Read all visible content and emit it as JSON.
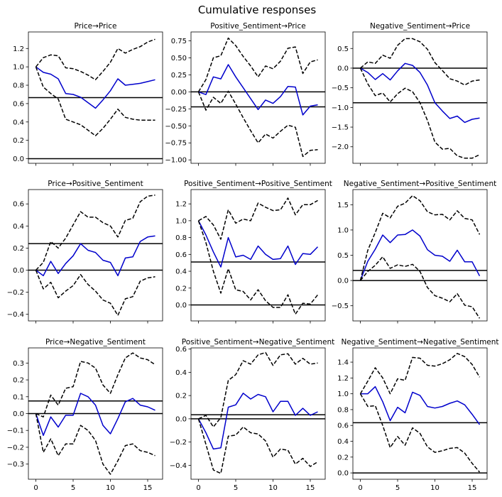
{
  "figure_title": "Cumulative responses",
  "colors": {
    "irf": "#0000cc",
    "band": "#000000",
    "ref": "#000000"
  },
  "chart_data": [
    {
      "type": "line",
      "title": "Price→Price",
      "x": [
        0,
        1,
        2,
        3,
        4,
        5,
        6,
        7,
        8,
        9,
        10,
        11,
        12,
        13,
        14,
        15,
        16
      ],
      "xticks": [
        "0",
        "5",
        "10",
        "15"
      ],
      "xlim": [
        -1,
        17
      ],
      "ylim": [
        -0.05,
        1.38
      ],
      "yticks": [
        "0.0",
        "0.2",
        "0.4",
        "0.6",
        "0.8",
        "1.0",
        "1.2"
      ],
      "hlines": [
        0.0,
        0.665
      ],
      "series": [
        {
          "values": [
            1.0,
            0.94,
            0.92,
            0.87,
            0.71,
            0.7,
            0.67,
            0.61,
            0.55,
            0.64,
            0.74,
            0.87,
            0.8,
            0.81,
            0.82,
            0.84,
            0.86
          ],
          "style": "solid"
        },
        {
          "values": [
            1.0,
            1.1,
            1.13,
            1.12,
            0.99,
            0.98,
            0.95,
            0.91,
            0.86,
            0.95,
            1.05,
            1.2,
            1.15,
            1.19,
            1.22,
            1.27,
            1.3
          ],
          "style": "dashed"
        },
        {
          "values": [
            1.0,
            0.78,
            0.71,
            0.65,
            0.43,
            0.4,
            0.37,
            0.31,
            0.25,
            0.33,
            0.43,
            0.54,
            0.45,
            0.43,
            0.42,
            0.42,
            0.42
          ],
          "style": "dashed"
        }
      ]
    },
    {
      "type": "line",
      "title": "Positive_Sentiment→Price",
      "x": [
        0,
        1,
        2,
        3,
        4,
        5,
        6,
        7,
        8,
        9,
        10,
        11,
        12,
        13,
        14,
        15,
        16
      ],
      "xticks": [
        "0",
        "5",
        "10",
        "15"
      ],
      "xlim": [
        -1,
        17
      ],
      "ylim": [
        -1.05,
        0.88
      ],
      "yticks": [
        "−1.00",
        "−0.75",
        "−0.50",
        "−0.25",
        "0.00",
        "0.25",
        "0.50",
        "0.75"
      ],
      "hlines": [
        0.0,
        -0.22
      ],
      "series": [
        {
          "values": [
            0.0,
            -0.04,
            0.22,
            0.19,
            0.4,
            0.22,
            0.06,
            -0.1,
            -0.26,
            -0.12,
            -0.17,
            -0.07,
            0.08,
            0.07,
            -0.34,
            -0.21,
            -0.19
          ],
          "style": "solid"
        },
        {
          "values": [
            0.0,
            0.18,
            0.5,
            0.53,
            0.79,
            0.68,
            0.52,
            0.38,
            0.22,
            0.38,
            0.34,
            0.45,
            0.64,
            0.66,
            0.27,
            0.44,
            0.47
          ],
          "style": "dashed"
        },
        {
          "values": [
            0.0,
            -0.27,
            -0.08,
            -0.17,
            0.01,
            -0.18,
            -0.38,
            -0.57,
            -0.75,
            -0.62,
            -0.68,
            -0.58,
            -0.49,
            -0.52,
            -0.95,
            -0.86,
            -0.85
          ],
          "style": "dashed"
        }
      ]
    },
    {
      "type": "line",
      "title": "Negative_Sentiment→Price",
      "x": [
        0,
        1,
        2,
        3,
        4,
        5,
        6,
        7,
        8,
        9,
        10,
        11,
        12,
        13,
        14,
        15,
        16
      ],
      "xticks": [
        "0",
        "5",
        "10",
        "15"
      ],
      "xlim": [
        -1,
        17
      ],
      "ylim": [
        -2.42,
        0.92
      ],
      "yticks": [
        "−2.0",
        "−1.5",
        "−1.0",
        "−0.5",
        "0.0",
        "0.5"
      ],
      "hlines": [
        0.0,
        -0.88
      ],
      "series": [
        {
          "values": [
            0.0,
            -0.11,
            -0.29,
            -0.14,
            -0.3,
            -0.07,
            0.12,
            0.07,
            -0.11,
            -0.43,
            -0.88,
            -1.09,
            -1.28,
            -1.22,
            -1.38,
            -1.3,
            -1.27
          ],
          "style": "solid"
        },
        {
          "values": [
            0.0,
            0.16,
            0.12,
            0.33,
            0.25,
            0.58,
            0.75,
            0.75,
            0.67,
            0.48,
            0.14,
            -0.06,
            -0.27,
            -0.33,
            -0.43,
            -0.33,
            -0.3
          ],
          "style": "dashed"
        },
        {
          "values": [
            0.0,
            -0.4,
            -0.7,
            -0.63,
            -0.86,
            -0.65,
            -0.51,
            -0.6,
            -0.88,
            -1.33,
            -1.88,
            -2.06,
            -2.04,
            -2.23,
            -2.29,
            -2.29,
            -2.2
          ],
          "style": "dashed"
        }
      ]
    },
    {
      "type": "line",
      "title": "Price→Positive_Sentiment",
      "x": [
        0,
        1,
        2,
        3,
        4,
        5,
        6,
        7,
        8,
        9,
        10,
        11,
        12,
        13,
        14,
        15,
        16
      ],
      "xticks": [
        "0",
        "5",
        "10",
        "15"
      ],
      "xlim": [
        -1,
        17
      ],
      "ylim": [
        -0.46,
        0.73
      ],
      "yticks": [
        "−0.4",
        "−0.2",
        "0.0",
        "0.2",
        "0.4",
        "0.6"
      ],
      "hlines": [
        0.0,
        0.24
      ],
      "series": [
        {
          "values": [
            0.0,
            -0.05,
            0.08,
            -0.03,
            0.06,
            0.13,
            0.24,
            0.18,
            0.16,
            0.09,
            0.07,
            -0.05,
            0.11,
            0.12,
            0.26,
            0.3,
            0.31
          ],
          "style": "solid"
        },
        {
          "values": [
            0.0,
            0.07,
            0.26,
            0.2,
            0.29,
            0.41,
            0.53,
            0.48,
            0.48,
            0.43,
            0.4,
            0.3,
            0.45,
            0.47,
            0.62,
            0.67,
            0.68
          ],
          "style": "dashed"
        },
        {
          "values": [
            0.0,
            -0.17,
            -0.11,
            -0.25,
            -0.19,
            -0.14,
            -0.04,
            -0.13,
            -0.19,
            -0.27,
            -0.3,
            -0.41,
            -0.26,
            -0.24,
            -0.1,
            -0.07,
            -0.06
          ],
          "style": "dashed"
        }
      ]
    },
    {
      "type": "line",
      "title": "Positive_Sentiment→Positive_Sentiment",
      "x": [
        0,
        1,
        2,
        3,
        4,
        5,
        6,
        7,
        8,
        9,
        10,
        11,
        12,
        13,
        14,
        15,
        16
      ],
      "xticks": [
        "0",
        "5",
        "10",
        "15"
      ],
      "xlim": [
        -1,
        17
      ],
      "ylim": [
        -0.19,
        1.37
      ],
      "yticks": [
        "0.0",
        "0.2",
        "0.4",
        "0.6",
        "0.8",
        "1.0",
        "1.2"
      ],
      "hlines": [
        0.0,
        0.51
      ],
      "series": [
        {
          "values": [
            1.0,
            0.83,
            0.63,
            0.45,
            0.8,
            0.57,
            0.59,
            0.54,
            0.7,
            0.6,
            0.54,
            0.55,
            0.7,
            0.48,
            0.61,
            0.6,
            0.69
          ],
          "style": "solid"
        },
        {
          "values": [
            1.0,
            1.05,
            0.95,
            0.78,
            1.13,
            0.97,
            1.02,
            1.0,
            1.21,
            1.16,
            1.12,
            1.13,
            1.27,
            1.07,
            1.19,
            1.19,
            1.24
          ],
          "style": "dashed"
        },
        {
          "values": [
            1.0,
            0.74,
            0.4,
            0.14,
            0.43,
            0.18,
            0.16,
            0.06,
            0.18,
            0.05,
            -0.03,
            -0.03,
            0.12,
            -0.11,
            0.02,
            0.01,
            0.12
          ],
          "style": "dashed"
        }
      ]
    },
    {
      "type": "line",
      "title": "Negative_Sentiment→Positive_Sentiment",
      "x": [
        0,
        1,
        2,
        3,
        4,
        5,
        6,
        7,
        8,
        9,
        10,
        11,
        12,
        13,
        14,
        15,
        16
      ],
      "xticks": [
        "0",
        "5",
        "10",
        "15"
      ],
      "xlim": [
        -1,
        17
      ],
      "ylim": [
        -0.8,
        1.8
      ],
      "yticks": [
        "−0.5",
        "0.0",
        "0.5",
        "1.0",
        "1.5"
      ],
      "hlines": [
        0.0,
        0.2
      ],
      "series": [
        {
          "values": [
            0.0,
            0.38,
            0.62,
            0.9,
            0.75,
            0.9,
            0.91,
            1.0,
            0.88,
            0.61,
            0.5,
            0.48,
            0.38,
            0.6,
            0.37,
            0.37,
            0.09
          ],
          "style": "solid"
        },
        {
          "values": [
            0.0,
            0.6,
            0.95,
            1.33,
            1.24,
            1.47,
            1.53,
            1.68,
            1.58,
            1.36,
            1.3,
            1.31,
            1.2,
            1.38,
            1.23,
            1.2,
            0.91
          ],
          "style": "dashed"
        },
        {
          "values": [
            0.0,
            0.18,
            0.3,
            0.47,
            0.24,
            0.31,
            0.28,
            0.32,
            0.18,
            -0.14,
            -0.3,
            -0.35,
            -0.42,
            -0.26,
            -0.49,
            -0.52,
            -0.75
          ],
          "style": "dashed"
        }
      ]
    },
    {
      "type": "line",
      "title": "Price→Negative_Sentiment",
      "x": [
        0,
        1,
        2,
        3,
        4,
        5,
        6,
        7,
        8,
        9,
        10,
        11,
        12,
        13,
        14,
        15,
        16
      ],
      "xticks": [
        "0",
        "5",
        "10",
        "15"
      ],
      "xlim": [
        -1,
        17
      ],
      "ylim": [
        -0.39,
        0.39
      ],
      "yticks": [
        "−0.3",
        "−0.2",
        "−0.1",
        "0.0",
        "0.1",
        "0.2",
        "0.3"
      ],
      "hlines": [
        0.0,
        0.075
      ],
      "series": [
        {
          "values": [
            0.0,
            -0.13,
            -0.02,
            -0.08,
            -0.01,
            -0.01,
            0.12,
            0.1,
            0.05,
            -0.07,
            -0.12,
            -0.03,
            0.07,
            0.09,
            0.05,
            0.04,
            0.02
          ],
          "style": "solid"
        },
        {
          "values": [
            0.0,
            -0.02,
            0.11,
            0.05,
            0.15,
            0.16,
            0.31,
            0.3,
            0.27,
            0.17,
            0.12,
            0.23,
            0.33,
            0.36,
            0.33,
            0.32,
            0.29
          ],
          "style": "dashed"
        },
        {
          "values": [
            0.0,
            -0.23,
            -0.15,
            -0.25,
            -0.18,
            -0.18,
            -0.07,
            -0.1,
            -0.16,
            -0.3,
            -0.36,
            -0.28,
            -0.19,
            -0.18,
            -0.22,
            -0.23,
            -0.25
          ],
          "style": "dashed"
        }
      ]
    },
    {
      "type": "line",
      "title": "Positive_Sentiment→Negative_Sentiment",
      "x": [
        0,
        1,
        2,
        3,
        4,
        5,
        6,
        7,
        8,
        9,
        10,
        11,
        12,
        13,
        14,
        15,
        16
      ],
      "xticks": [
        "0",
        "5",
        "10",
        "15"
      ],
      "xlim": [
        -1,
        17
      ],
      "ylim": [
        -0.52,
        0.61
      ],
      "yticks": [
        "−0.4",
        "−0.2",
        "0.0",
        "0.2",
        "0.4",
        "0.6"
      ],
      "hlines": [
        0.0,
        0.035
      ],
      "series": [
        {
          "values": [
            0.0,
            -0.12,
            -0.26,
            -0.25,
            0.1,
            0.12,
            0.22,
            0.17,
            0.21,
            0.19,
            0.06,
            0.15,
            0.15,
            0.03,
            0.09,
            0.03,
            0.06
          ],
          "style": "solid"
        },
        {
          "values": [
            0.0,
            0.03,
            -0.07,
            0.01,
            0.33,
            0.38,
            0.5,
            0.47,
            0.55,
            0.57,
            0.46,
            0.55,
            0.56,
            0.47,
            0.52,
            0.47,
            0.48
          ],
          "style": "dashed"
        },
        {
          "values": [
            0.0,
            -0.22,
            -0.44,
            -0.47,
            -0.15,
            -0.14,
            -0.07,
            -0.12,
            -0.13,
            -0.19,
            -0.33,
            -0.26,
            -0.27,
            -0.39,
            -0.34,
            -0.41,
            -0.37
          ],
          "style": "dashed"
        }
      ]
    },
    {
      "type": "line",
      "title": "Negative_Sentiment→Negative_Sentiment",
      "x": [
        0,
        1,
        2,
        3,
        4,
        5,
        6,
        7,
        8,
        9,
        10,
        11,
        12,
        13,
        14,
        15,
        16
      ],
      "xticks": [
        "0",
        "5",
        "10",
        "15"
      ],
      "xlim": [
        -1,
        17
      ],
      "ylim": [
        -0.08,
        1.58
      ],
      "yticks": [
        "0.0",
        "0.2",
        "0.4",
        "0.6",
        "0.8",
        "1.0",
        "1.2",
        "1.4"
      ],
      "hlines": [
        0.0,
        0.635
      ],
      "series": [
        {
          "values": [
            1.0,
            1.0,
            1.09,
            0.9,
            0.66,
            0.83,
            0.76,
            1.02,
            0.98,
            0.84,
            0.82,
            0.84,
            0.88,
            0.91,
            0.86,
            0.74,
            0.61
          ],
          "style": "solid"
        },
        {
          "values": [
            1.0,
            1.16,
            1.33,
            1.2,
            1.0,
            1.19,
            1.17,
            1.46,
            1.45,
            1.36,
            1.35,
            1.38,
            1.43,
            1.51,
            1.47,
            1.37,
            1.21
          ],
          "style": "dashed"
        },
        {
          "values": [
            1.0,
            0.84,
            0.85,
            0.6,
            0.32,
            0.46,
            0.35,
            0.57,
            0.5,
            0.33,
            0.26,
            0.28,
            0.31,
            0.32,
            0.25,
            0.12,
            0.01
          ],
          "style": "dashed"
        }
      ]
    }
  ]
}
